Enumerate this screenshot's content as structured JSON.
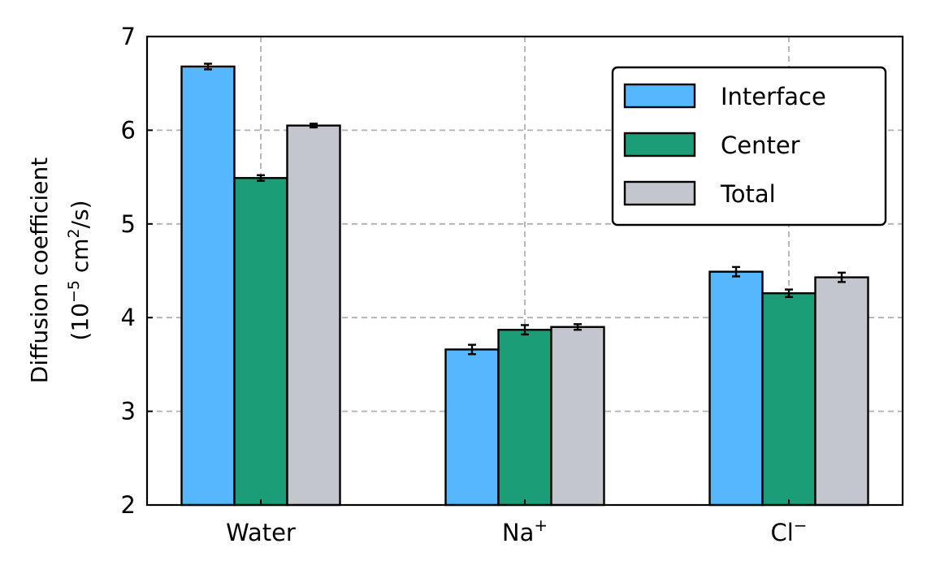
{
  "chart_data": {
    "type": "bar",
    "categories": [
      "Water",
      "Na",
      "Cl"
    ],
    "category_superscripts": [
      "",
      "+",
      "−"
    ],
    "series": [
      {
        "name": "Interface",
        "color": "#56B7FF",
        "values": [
          6.68,
          3.66,
          4.49
        ],
        "errors": [
          0.03,
          0.05,
          0.05
        ]
      },
      {
        "name": "Center",
        "color": "#1B9E77",
        "values": [
          5.49,
          3.87,
          4.26
        ],
        "errors": [
          0.03,
          0.05,
          0.04
        ]
      },
      {
        "name": "Total",
        "color": "#C3C6CC",
        "values": [
          6.05,
          3.9,
          4.43
        ],
        "errors": [
          0.02,
          0.03,
          0.05
        ]
      }
    ],
    "ylabel_line1": "Diffusion coefficient",
    "ylabel_line2_pre": "(10",
    "ylabel_line2_sup1": "−5",
    "ylabel_line2_mid": " cm",
    "ylabel_line2_sup2": "2",
    "ylabel_line2_post": "/s)",
    "ylim": [
      2,
      7
    ],
    "yticks": [
      2,
      3,
      4,
      5,
      6,
      7
    ],
    "grid": true,
    "legend_position": "top-right"
  }
}
